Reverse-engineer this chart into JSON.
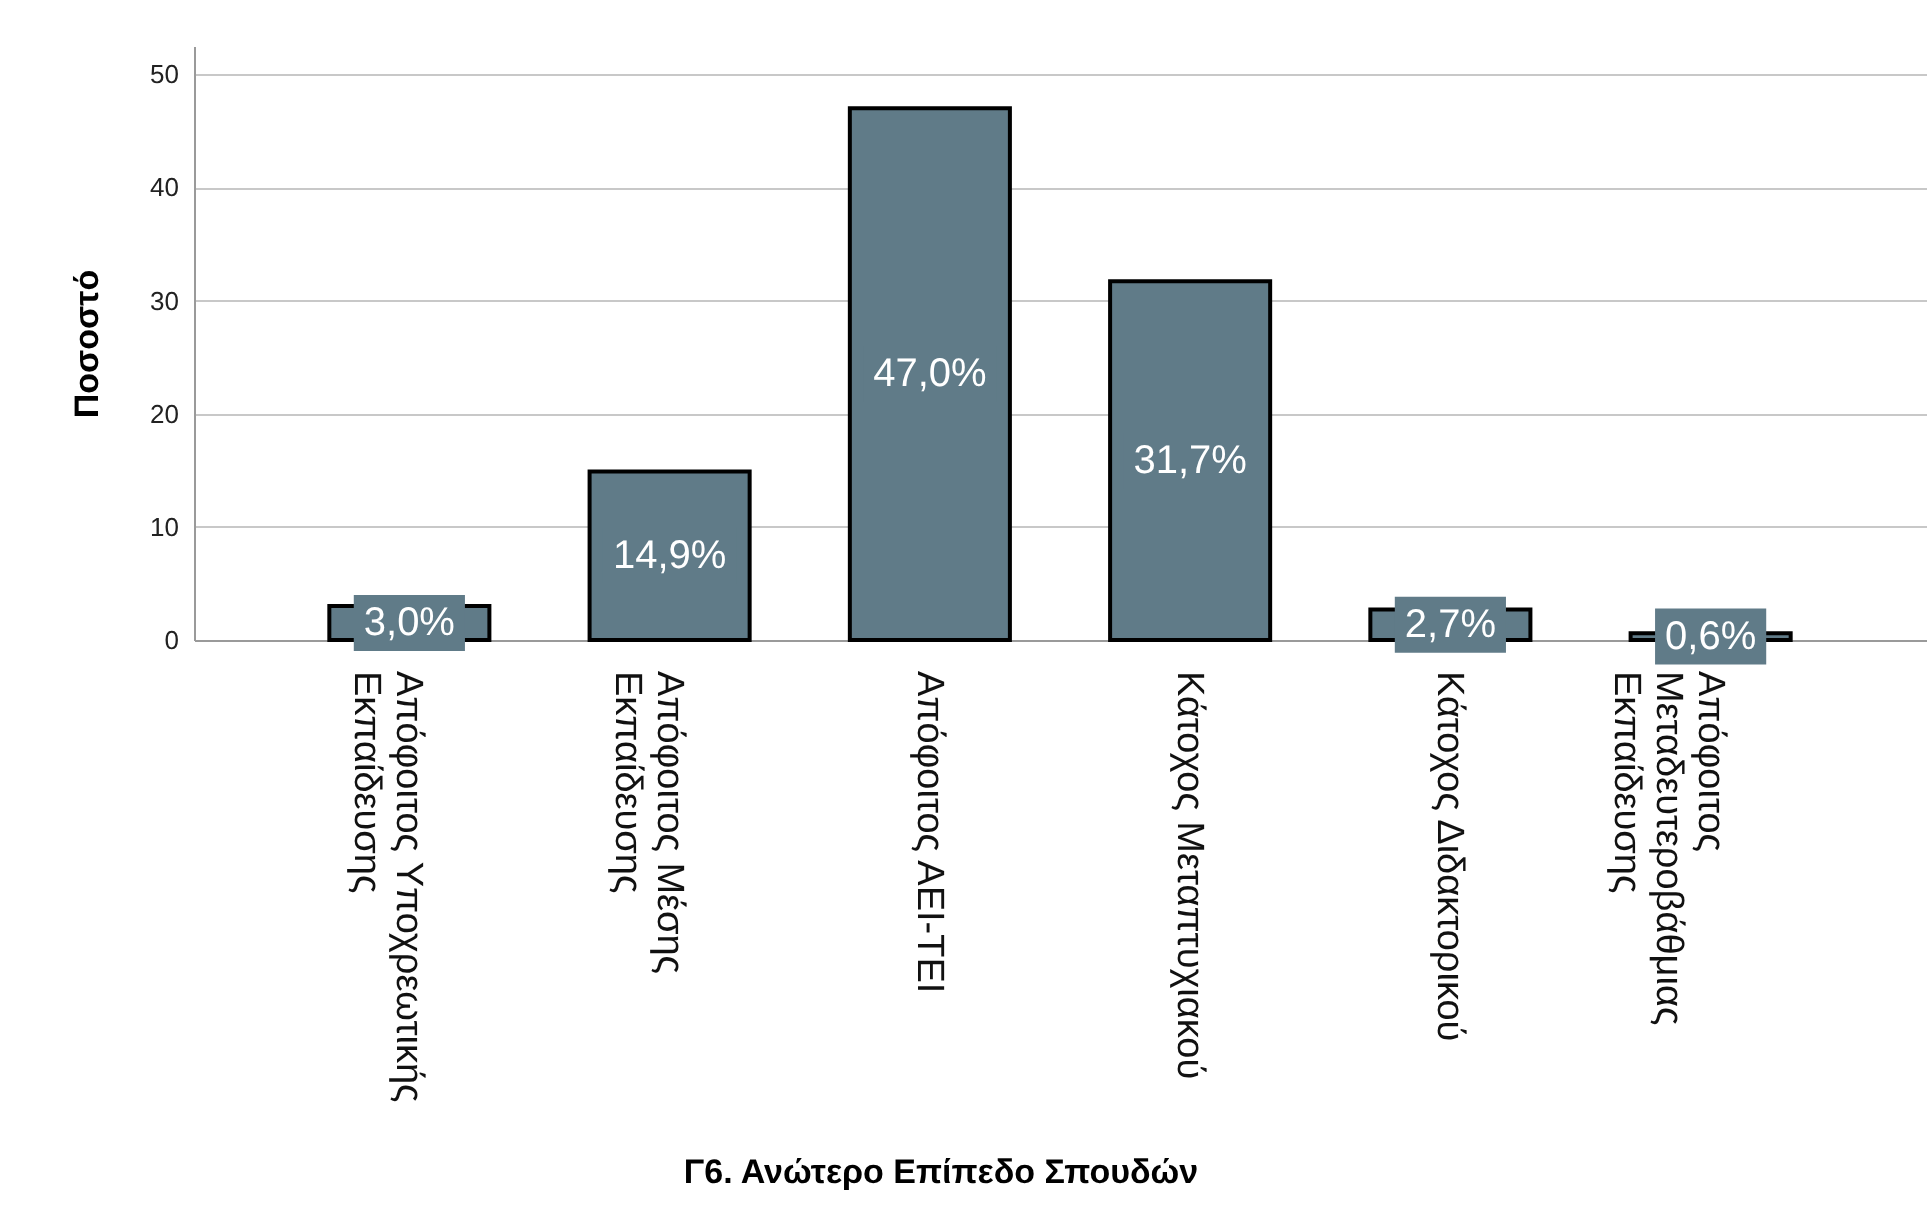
{
  "chart_data": {
    "type": "bar",
    "categories": [
      "Απόφοιτος Υποχρεωτικής Εκπαίδευσης",
      "Απόφοιτος Μέσης Εκπαίδευσης",
      "Απόφοιτος ΑΕΙ-ΤΕΙ",
      "Κάτοχος Μεταπτυχιακού",
      "Κάτοχος Διδακτορικού",
      "Απόφοιτος Μεταδευτεροβάθμιας Εκπαίδευσης"
    ],
    "values": [
      3.0,
      14.9,
      47.0,
      31.7,
      2.7,
      0.6
    ],
    "value_labels": [
      "3,0%",
      "14,9%",
      "47,0%",
      "31,7%",
      "2,7%",
      "0,6%"
    ],
    "color": "#607b88",
    "xlabel": "Γ6. Ανώτερο Επίπεδο Σπουδών",
    "ylabel": "Ποσοστό",
    "ylim": [
      0,
      52.5
    ],
    "yticks": [
      0,
      10,
      20,
      30,
      40,
      50
    ],
    "grid": "y"
  }
}
